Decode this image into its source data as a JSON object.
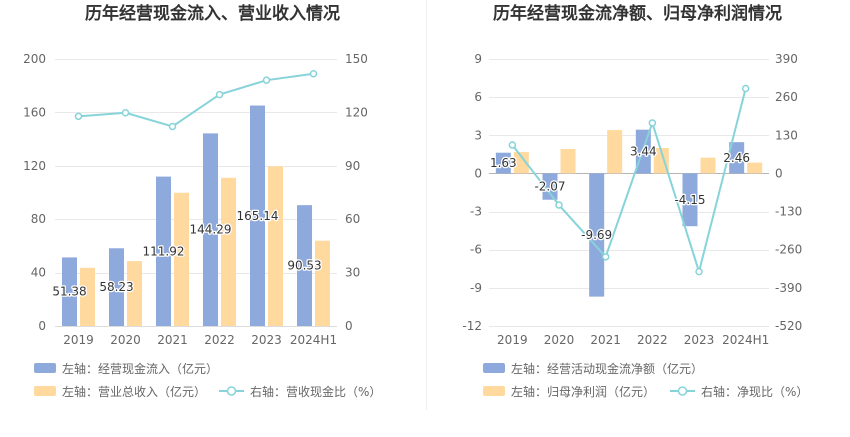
{
  "chart_data": [
    {
      "type": "bar",
      "title": "历年经营现金流入、营业收入情况",
      "categories": [
        "2019",
        "2020",
        "2021",
        "2022",
        "2023",
        "2024H1"
      ],
      "ylim_left": [
        0,
        200
      ],
      "yticks_left": [
        0,
        40,
        80,
        120,
        160,
        200
      ],
      "ylim_right": [
        0,
        150
      ],
      "yticks_right": [
        0,
        30,
        60,
        90,
        120,
        150
      ],
      "grid": true,
      "bars": [
        {
          "name": "左轴：经营现金流入（亿元）",
          "color": "#8eaadc",
          "values": [
            51.38,
            58.23,
            111.92,
            144.29,
            165.14,
            90.53
          ],
          "labeled": true
        },
        {
          "name": "左轴：营业总收入（亿元）",
          "color": "#ffd99e",
          "values": [
            43.6,
            48.6,
            99.8,
            111.0,
            119.6,
            63.9
          ],
          "labeled": false
        }
      ],
      "line": {
        "name": "右轴：营收现金比（%）",
        "color": "#86d4da",
        "values": [
          117.8,
          119.8,
          112.1,
          130.0,
          138.1,
          141.7
        ]
      }
    },
    {
      "type": "bar",
      "title": "历年经营现金流净额、归母净利润情况",
      "categories": [
        "2019",
        "2020",
        "2021",
        "2022",
        "2023",
        "2024H1"
      ],
      "ylim_left": [
        -12,
        9
      ],
      "yticks_left": [
        -12,
        -9,
        -6,
        -3,
        0,
        3,
        6,
        9
      ],
      "ylim_right": [
        -520,
        390
      ],
      "yticks_right": [
        -520,
        -390,
        -260,
        -130,
        0,
        130,
        260,
        390
      ],
      "grid": true,
      "bars": [
        {
          "name": "左轴：经营活动现金流净额（亿元）",
          "color": "#8eaadc",
          "values": [
            1.63,
            -2.07,
            -9.69,
            3.44,
            -4.15,
            2.46
          ],
          "labeled": true
        },
        {
          "name": "左轴：归母净利润（亿元）",
          "color": "#ffd99e",
          "values": [
            1.68,
            1.92,
            3.41,
            2.0,
            1.24,
            0.85
          ],
          "labeled": false
        }
      ],
      "line": {
        "name": "右轴：净现比（%）",
        "color": "#86d4da",
        "values": [
          97.0,
          -107.8,
          -284.2,
          172.0,
          -334.7,
          289.4
        ]
      }
    }
  ]
}
